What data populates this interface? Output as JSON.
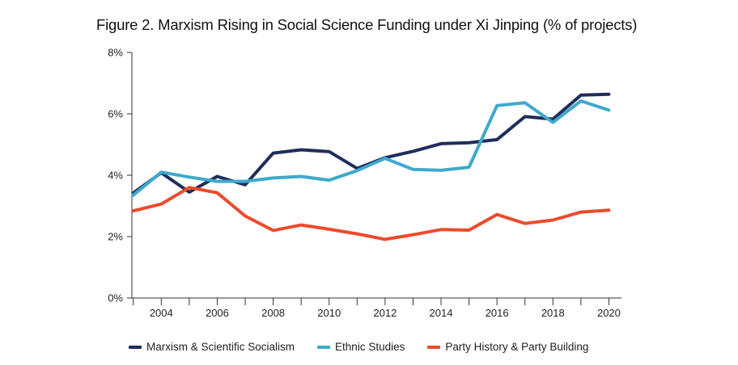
{
  "chart_data": {
    "type": "line",
    "title": "Figure 2. Marxism Rising in Social Science Funding under Xi Jinping (% of projects)",
    "xlabel": "",
    "ylabel": "",
    "ylim": [
      0,
      8
    ],
    "y_ticks": [
      0,
      2,
      4,
      6,
      8
    ],
    "y_tick_labels": [
      "0%",
      "2%",
      "4%",
      "6%",
      "8%"
    ],
    "xlim": [
      2002.95,
      2020.45
    ],
    "x_minor_ticks": [
      2003,
      2004,
      2005,
      2006,
      2007,
      2008,
      2009,
      2010,
      2011,
      2012,
      2013,
      2014,
      2015,
      2016,
      2017,
      2018,
      2019,
      2020
    ],
    "x_tick_labels": [
      "2004",
      "2006",
      "2008",
      "2010",
      "2012",
      "2014",
      "2016",
      "2018",
      "2020"
    ],
    "x": [
      2003,
      2004,
      2005,
      2006,
      2007,
      2008,
      2009,
      2010,
      2011,
      2012,
      2013,
      2014,
      2015,
      2016,
      2017,
      2018,
      2019,
      2020
    ],
    "grid": false,
    "legend_position": "bottom",
    "series": [
      {
        "name": "Marxism & Scientific Socialism",
        "color": "#1f2d5c",
        "values": [
          3.42,
          4.08,
          3.45,
          3.96,
          3.69,
          4.72,
          4.83,
          4.77,
          4.22,
          4.57,
          4.78,
          5.03,
          5.06,
          5.16,
          5.91,
          5.83,
          6.61,
          6.64
        ]
      },
      {
        "name": "Ethnic Studies",
        "color": "#3fa9cc",
        "values": [
          3.35,
          4.1,
          3.94,
          3.8,
          3.8,
          3.91,
          3.96,
          3.84,
          4.15,
          4.55,
          4.19,
          4.16,
          4.26,
          6.27,
          6.36,
          5.72,
          6.42,
          6.12
        ]
      },
      {
        "name": "Party History & Party Building",
        "color": "#ee4a2c",
        "values": [
          2.84,
          3.06,
          3.6,
          3.43,
          2.67,
          2.2,
          2.38,
          2.24,
          2.09,
          1.91,
          2.06,
          2.23,
          2.21,
          2.72,
          2.43,
          2.54,
          2.8,
          2.86
        ]
      }
    ]
  }
}
